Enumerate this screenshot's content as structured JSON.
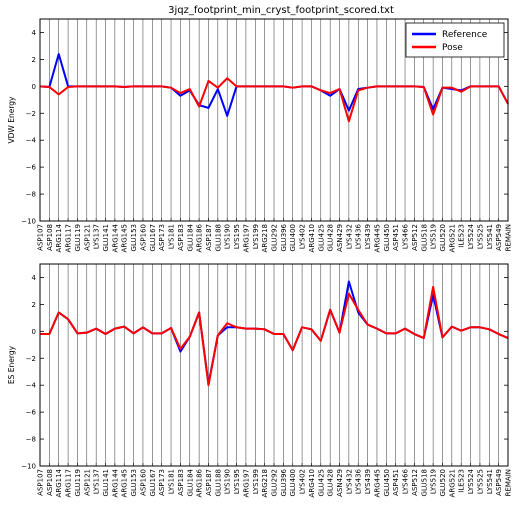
{
  "figure_title": "3jqz_footprint_min_cryst_footprint_scored.txt",
  "chart_data": [
    {
      "type": "line",
      "ylabel": "VDW Energy",
      "ylim": [
        -10,
        5
      ],
      "yticks": [
        -10,
        -8,
        -6,
        -4,
        -2,
        0,
        2,
        4
      ],
      "grid": "vertical",
      "legend_position": "top-right",
      "categories": [
        "ASP107",
        "ASP108",
        "ARG114",
        "ARG117",
        "GLU119",
        "ASP121",
        "LYS137",
        "GLU141",
        "ARG144",
        "ARG145",
        "GLU153",
        "ASP160",
        "GLU167",
        "ASP173",
        "LYS181",
        "ASP183",
        "GLU184",
        "ARG186",
        "ASP187",
        "GLU188",
        "LYS190",
        "LYS195",
        "ARG197",
        "LYS199",
        "ARG218",
        "GLU292",
        "GLU396",
        "GLU400",
        "LYS402",
        "ARG410",
        "GLU425",
        "GLU428",
        "ASN429",
        "LYS432",
        "LYS436",
        "LYS439",
        "ARG445",
        "GLU450",
        "ASP451",
        "LYS466",
        "ASP512",
        "GLU518",
        "LYS519",
        "GLU520",
        "ARG521",
        "ILE523",
        "LYS524",
        "LYS525",
        "LYS541",
        "ASP549",
        "REMAIN"
      ],
      "series": [
        {
          "name": "Reference",
          "color": "#0000ff",
          "values": [
            0,
            -0.05,
            2.4,
            0,
            0,
            0,
            0,
            0,
            0,
            -0.05,
            0,
            0,
            0,
            0,
            -0.1,
            -0.7,
            -0.3,
            -1.4,
            -1.6,
            -0.2,
            -2.2,
            0,
            0,
            0,
            0,
            0,
            0,
            -0.1,
            0,
            0,
            -0.3,
            -0.7,
            -0.2,
            -1.8,
            -0.2,
            -0.1,
            0,
            0,
            0,
            0,
            0,
            -0.05,
            -1.7,
            -0.1,
            -0.2,
            -0.3,
            0,
            0,
            0,
            0,
            -1.3
          ]
        },
        {
          "name": "Pose",
          "color": "#ff0000",
          "values": [
            0,
            -0.05,
            -0.6,
            -0.05,
            0,
            0,
            0,
            0,
            0,
            -0.05,
            0,
            0,
            0,
            0,
            -0.1,
            -0.5,
            -0.2,
            -1.5,
            0.4,
            -0.1,
            0.6,
            0,
            0,
            0,
            0,
            0,
            0,
            -0.1,
            0,
            0,
            -0.3,
            -0.5,
            -0.2,
            -2.6,
            -0.3,
            -0.1,
            0,
            0,
            0,
            0,
            0,
            -0.05,
            -2.1,
            -0.1,
            -0.1,
            -0.4,
            0,
            0,
            0,
            0,
            -1.3
          ]
        }
      ]
    },
    {
      "type": "line",
      "ylabel": "ES Energy",
      "ylim": [
        -10,
        5
      ],
      "yticks": [
        -10,
        -8,
        -6,
        -4,
        -2,
        0,
        2,
        4
      ],
      "grid": "vertical",
      "categories": [
        "ASP107",
        "ASP108",
        "ARG114",
        "ARG117",
        "GLU119",
        "ASP121",
        "LYS137",
        "GLU141",
        "ARG144",
        "ARG145",
        "GLU153",
        "ASP160",
        "GLU167",
        "ASP173",
        "LYS181",
        "ASP183",
        "GLU184",
        "ARG186",
        "ASP187",
        "GLU188",
        "LYS190",
        "LYS195",
        "ARG197",
        "LYS199",
        "ARG218",
        "GLU292",
        "GLU396",
        "GLU400",
        "LYS402",
        "ARG410",
        "GLU425",
        "GLU428",
        "ASN429",
        "LYS432",
        "LYS436",
        "LYS439",
        "ARG445",
        "GLU450",
        "ASP451",
        "LYS466",
        "ASP512",
        "GLU518",
        "LYS519",
        "GLU520",
        "ARG521",
        "ILE523",
        "LYS524",
        "LYS525",
        "LYS541",
        "ASP549",
        "REMAIN"
      ],
      "series": [
        {
          "name": "Reference",
          "color": "#0000ff",
          "values": [
            -0.2,
            -0.2,
            1.4,
            0.9,
            -0.15,
            -0.1,
            0.2,
            -0.2,
            0.2,
            0.35,
            -0.15,
            0.3,
            -0.15,
            -0.15,
            0.25,
            -1.5,
            -0.4,
            1.4,
            -3.9,
            -0.3,
            0.3,
            0.3,
            0.2,
            0.2,
            0.15,
            -0.2,
            -0.2,
            -1.4,
            0.3,
            0.15,
            -0.7,
            1.6,
            -0.1,
            3.7,
            1.4,
            0.5,
            0.2,
            -0.15,
            -0.15,
            0.2,
            -0.2,
            -0.5,
            2.7,
            -0.45,
            0.35,
            0.05,
            0.3,
            0.3,
            0.15,
            -0.2,
            -0.5
          ]
        },
        {
          "name": "Pose",
          "color": "#ff0000",
          "values": [
            -0.2,
            -0.2,
            1.4,
            0.9,
            -0.15,
            -0.1,
            0.2,
            -0.2,
            0.2,
            0.35,
            -0.15,
            0.3,
            -0.15,
            -0.15,
            0.25,
            -1.3,
            -0.4,
            1.4,
            -4.0,
            -0.3,
            0.6,
            0.3,
            0.2,
            0.2,
            0.15,
            -0.2,
            -0.2,
            -1.4,
            0.3,
            0.15,
            -0.7,
            1.6,
            -0.1,
            2.8,
            1.6,
            0.5,
            0.2,
            -0.15,
            -0.15,
            0.2,
            -0.2,
            -0.5,
            3.3,
            -0.45,
            0.35,
            0.05,
            0.3,
            0.3,
            0.15,
            -0.2,
            -0.5
          ]
        }
      ]
    }
  ]
}
